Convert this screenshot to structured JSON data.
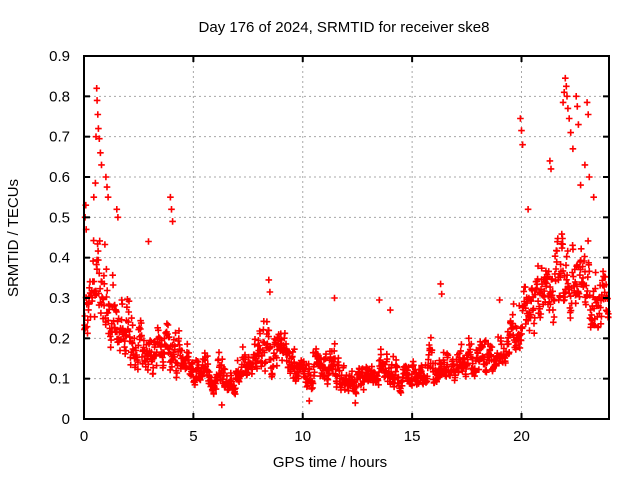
{
  "window": {
    "title": "Day 176 of 2024, SRMTID for receiver ske8"
  },
  "colors": {
    "marker": "#ff0000",
    "grid": "#a8a8a8",
    "frame": "#000000",
    "background": "#ffffff",
    "text": "#000000"
  },
  "chart_data": {
    "type": "scatter",
    "title": "Day 176 of 2024, SRMTID for receiver ske8",
    "xlabel": "GPS time / hours",
    "ylabel": "SRMTID / TECUs",
    "xlim": [
      0,
      24
    ],
    "ylim": [
      0,
      0.9
    ],
    "xticks": [
      0,
      5,
      10,
      15,
      20
    ],
    "xtick_labels": [
      "0",
      "5",
      "10",
      "15",
      "20"
    ],
    "yticks": [
      0,
      0.1,
      0.2,
      0.3,
      0.4,
      0.5,
      0.6,
      0.7,
      0.8,
      0.9
    ],
    "ytick_labels": [
      "0",
      "0.1",
      "0.2",
      "0.3",
      "0.4",
      "0.5",
      "0.6",
      "0.7",
      "0.8",
      "0.9"
    ],
    "grid": true,
    "legend": "none",
    "marker": {
      "shape": "plus",
      "color": "#ff0000",
      "size": 7
    },
    "n_points": 1450,
    "seed": 176,
    "band_envelope": [
      [
        0.0,
        0.16,
        0.33
      ],
      [
        0.3,
        0.15,
        0.45
      ],
      [
        0.6,
        0.16,
        0.62
      ],
      [
        0.9,
        0.17,
        0.55
      ],
      [
        1.2,
        0.14,
        0.48
      ],
      [
        1.6,
        0.11,
        0.38
      ],
      [
        2.0,
        0.1,
        0.33
      ],
      [
        2.5,
        0.09,
        0.3
      ],
      [
        3.0,
        0.08,
        0.3
      ],
      [
        3.5,
        0.08,
        0.26
      ],
      [
        4.0,
        0.08,
        0.3
      ],
      [
        4.5,
        0.08,
        0.24
      ],
      [
        5.0,
        0.07,
        0.22
      ],
      [
        5.5,
        0.06,
        0.2
      ],
      [
        6.0,
        0.05,
        0.18
      ],
      [
        6.5,
        0.05,
        0.17
      ],
      [
        7.0,
        0.06,
        0.2
      ],
      [
        7.5,
        0.08,
        0.24
      ],
      [
        8.0,
        0.08,
        0.26
      ],
      [
        8.5,
        0.09,
        0.3
      ],
      [
        9.0,
        0.08,
        0.26
      ],
      [
        9.5,
        0.07,
        0.22
      ],
      [
        10.0,
        0.06,
        0.19
      ],
      [
        10.5,
        0.06,
        0.18
      ],
      [
        11.0,
        0.07,
        0.24
      ],
      [
        11.5,
        0.06,
        0.22
      ],
      [
        12.0,
        0.05,
        0.17
      ],
      [
        12.5,
        0.05,
        0.16
      ],
      [
        13.0,
        0.06,
        0.18
      ],
      [
        13.5,
        0.07,
        0.22
      ],
      [
        14.0,
        0.06,
        0.21
      ],
      [
        14.5,
        0.06,
        0.18
      ],
      [
        15.0,
        0.07,
        0.19
      ],
      [
        15.5,
        0.07,
        0.2
      ],
      [
        16.0,
        0.07,
        0.22
      ],
      [
        16.5,
        0.08,
        0.25
      ],
      [
        17.0,
        0.08,
        0.22
      ],
      [
        17.5,
        0.09,
        0.23
      ],
      [
        18.0,
        0.1,
        0.24
      ],
      [
        18.5,
        0.1,
        0.25
      ],
      [
        19.0,
        0.11,
        0.26
      ],
      [
        19.5,
        0.13,
        0.3
      ],
      [
        20.0,
        0.15,
        0.36
      ],
      [
        20.5,
        0.17,
        0.42
      ],
      [
        21.0,
        0.18,
        0.45
      ],
      [
        21.5,
        0.2,
        0.5
      ],
      [
        22.0,
        0.22,
        0.56
      ],
      [
        22.5,
        0.22,
        0.55
      ],
      [
        23.0,
        0.18,
        0.47
      ],
      [
        23.5,
        0.16,
        0.43
      ],
      [
        24.0,
        0.2,
        0.42
      ]
    ],
    "outliers": [
      [
        0.05,
        0.5
      ],
      [
        0.08,
        0.53
      ],
      [
        0.1,
        0.47
      ],
      [
        0.45,
        0.55
      ],
      [
        0.52,
        0.585
      ],
      [
        0.55,
        0.7
      ],
      [
        0.58,
        0.82
      ],
      [
        0.6,
        0.79
      ],
      [
        0.63,
        0.755
      ],
      [
        0.66,
        0.72
      ],
      [
        0.7,
        0.695
      ],
      [
        0.75,
        0.66
      ],
      [
        0.8,
        0.63
      ],
      [
        1.0,
        0.6
      ],
      [
        1.05,
        0.575
      ],
      [
        1.1,
        0.55
      ],
      [
        1.5,
        0.52
      ],
      [
        1.55,
        0.5
      ],
      [
        2.95,
        0.44
      ],
      [
        3.95,
        0.55
      ],
      [
        4.0,
        0.52
      ],
      [
        4.05,
        0.49
      ],
      [
        6.3,
        0.035
      ],
      [
        10.3,
        0.045
      ],
      [
        12.4,
        0.04
      ],
      [
        8.45,
        0.345
      ],
      [
        8.5,
        0.315
      ],
      [
        11.45,
        0.3
      ],
      [
        13.5,
        0.295
      ],
      [
        14.0,
        0.27
      ],
      [
        16.3,
        0.335
      ],
      [
        16.35,
        0.31
      ],
      [
        19.0,
        0.295
      ],
      [
        19.95,
        0.745
      ],
      [
        20.0,
        0.715
      ],
      [
        20.05,
        0.68
      ],
      [
        20.3,
        0.52
      ],
      [
        21.3,
        0.64
      ],
      [
        21.35,
        0.62
      ],
      [
        21.9,
        0.785
      ],
      [
        21.95,
        0.81
      ],
      [
        22.0,
        0.845
      ],
      [
        22.05,
        0.825
      ],
      [
        22.08,
        0.8
      ],
      [
        22.12,
        0.77
      ],
      [
        22.18,
        0.745
      ],
      [
        22.25,
        0.71
      ],
      [
        22.35,
        0.67
      ],
      [
        22.5,
        0.8
      ],
      [
        22.55,
        0.775
      ],
      [
        22.6,
        0.73
      ],
      [
        22.7,
        0.58
      ],
      [
        22.9,
        0.63
      ],
      [
        23.0,
        0.785
      ],
      [
        23.05,
        0.755
      ],
      [
        23.1,
        0.6
      ],
      [
        23.3,
        0.55
      ]
    ]
  }
}
